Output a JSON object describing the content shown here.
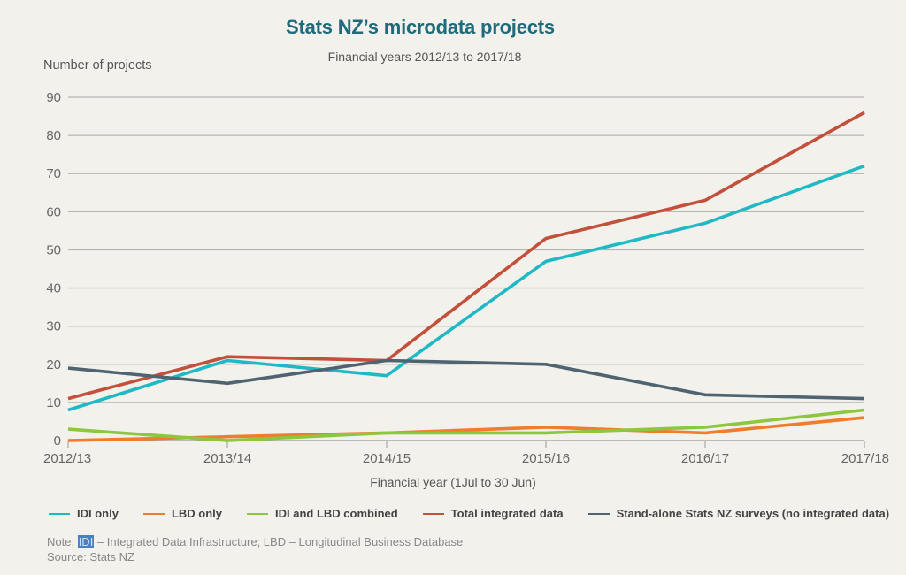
{
  "chart_data": {
    "type": "line",
    "title": "Stats NZ’s microdata projects",
    "subtitle": "Financial years 2012/13 to 2017/18",
    "ylabel": "Number of projects",
    "xlabel": "Financial year (1Jul to 30 Jun)",
    "ylim": [
      0,
      90
    ],
    "yticks": [
      0,
      10,
      20,
      30,
      40,
      50,
      60,
      70,
      80,
      90
    ],
    "grid": true,
    "legend_position": "bottom",
    "categories": [
      "2012/13",
      "2013/14",
      "2014/15",
      "2015/16",
      "2016/17",
      "2017/18"
    ],
    "series": [
      {
        "name": "IDI only",
        "color": "#1fb9c6",
        "values": [
          8,
          21,
          17,
          47,
          57,
          72
        ]
      },
      {
        "name": "LBD only",
        "color": "#f07c2c",
        "values": [
          0,
          1,
          2,
          3.5,
          2,
          6
        ]
      },
      {
        "name": "IDI and LBD combined",
        "color": "#8dc63f",
        "values": [
          3,
          0,
          2,
          2,
          3.5,
          8
        ]
      },
      {
        "name": "Total integrated data",
        "color": "#c2503a",
        "values": [
          11,
          22,
          21,
          53,
          63,
          86
        ]
      },
      {
        "name": "Stand-alone Stats NZ surveys (no integrated data)",
        "color": "#4f6371",
        "values": [
          19,
          15,
          21,
          20,
          12,
          11
        ]
      }
    ]
  },
  "note": {
    "prefix": "Note: ",
    "highlight": "IDI",
    "rest": " – Integrated Data Infrastructure; LBD – Longitudinal Business Database",
    "source": "Source: Stats NZ"
  }
}
